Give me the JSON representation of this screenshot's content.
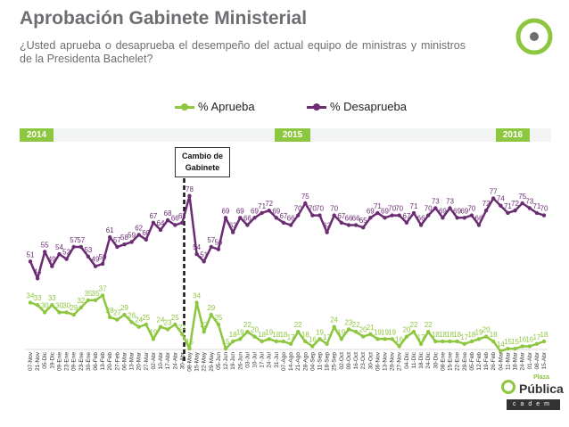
{
  "header": {
    "title": "Aprobación Gabinete Ministerial",
    "subtitle": "¿Usted aprueba o desaprueba el desempeño del actual equipo de ministras y ministros de la Presidenta Bachelet?"
  },
  "colors": {
    "aprueba": "#8dc63f",
    "desaprueba": "#6b2c74",
    "year_bg": "#8dc63f",
    "title": "#6d6e71"
  },
  "years": [
    "2014",
    "2015",
    "2016"
  ],
  "callout": {
    "line1": "Cambio de",
    "line2": "Gabinete"
  },
  "brand": {
    "name": "Pública",
    "plaza": "Plaza",
    "sub": "cadem"
  },
  "chart_data": {
    "type": "line",
    "title": "Aprobación Gabinete Ministerial",
    "ylim": [
      0,
      100
    ],
    "legend_position": "top",
    "categories": [
      "07-Nov",
      "21-Nov",
      "05-Dic",
      "19-Dic",
      "09-Ene",
      "23-Ene",
      "09-Ene",
      "23-Ene",
      "30-Ene",
      "06-Feb",
      "13-Feb",
      "20-Feb",
      "27-Feb",
      "06-Mar",
      "13-Mar",
      "20-Mar",
      "27-Mar",
      "02-Abr",
      "10-Abr",
      "17-Abr",
      "24-Abr",
      "30-Abr",
      "08-May",
      "15-May",
      "22-May",
      "29-May",
      "05-Jun",
      "12-Jun",
      "19-Jun",
      "26-Jun",
      "03-Jul",
      "10-Jul",
      "17-Jul",
      "24-Jul",
      "31-Jul",
      "07-Ago",
      "14-Ago",
      "21-Ago",
      "28-Ago",
      "04-Sep",
      "11-Sep",
      "18-Sep",
      "25-Sep",
      "02-Oct",
      "09-Oct",
      "16-Oct",
      "23-Oct",
      "30-Oct",
      "06-Nov",
      "13-Nov",
      "20-Nov",
      "27-Nov",
      "04-Dic",
      "11-Dic",
      "18-Dic",
      "24-Dic",
      "30-Dic",
      "08-Ene",
      "15-Ene",
      "22-Ene",
      "29-Ene",
      "05-Feb",
      "12-Feb",
      "19-Feb",
      "26-Feb",
      "04-Mar",
      "11-Mar",
      "18-Mar",
      "24-Mar",
      "01-Abr",
      "08-Abr",
      "15-Abr"
    ],
    "event": {
      "label": "Cambio de Gabinete",
      "index": 22
    },
    "series": [
      {
        "name": "% Aprueba",
        "values": [
          34,
          33,
          30,
          33,
          30,
          30,
          29,
          32,
          35,
          35,
          37,
          28,
          27,
          29,
          26,
          24,
          25,
          19,
          24,
          23,
          25,
          21,
          15,
          34,
          22,
          29,
          25,
          15,
          18,
          19,
          22,
          20,
          18,
          19,
          18,
          18,
          17,
          22,
          18,
          16,
          19,
          17,
          24,
          19,
          23,
          22,
          20,
          21,
          19,
          19,
          19,
          16,
          20,
          22,
          17,
          22,
          18,
          18,
          18,
          18,
          17,
          18,
          19,
          20,
          18,
          14,
          15,
          15,
          16,
          16,
          17,
          18
        ]
      },
      {
        "name": "% Desaprueba",
        "values": [
          51,
          44,
          55,
          49,
          54,
          52,
          57,
          57,
          53,
          49,
          50,
          61,
          57,
          58,
          59,
          62,
          60,
          67,
          64,
          68,
          66,
          67,
          78,
          54,
          51,
          57,
          56,
          69,
          63,
          69,
          66,
          69,
          71,
          72,
          69,
          67,
          66,
          70,
          75,
          70,
          70,
          63,
          70,
          67,
          66,
          66,
          65,
          69,
          71,
          69,
          70,
          70,
          67,
          71,
          66,
          70,
          73,
          69,
          73,
          69,
          69,
          70,
          66,
          72,
          77,
          74,
          71,
          72,
          75,
          73,
          71,
          70
        ]
      }
    ]
  }
}
